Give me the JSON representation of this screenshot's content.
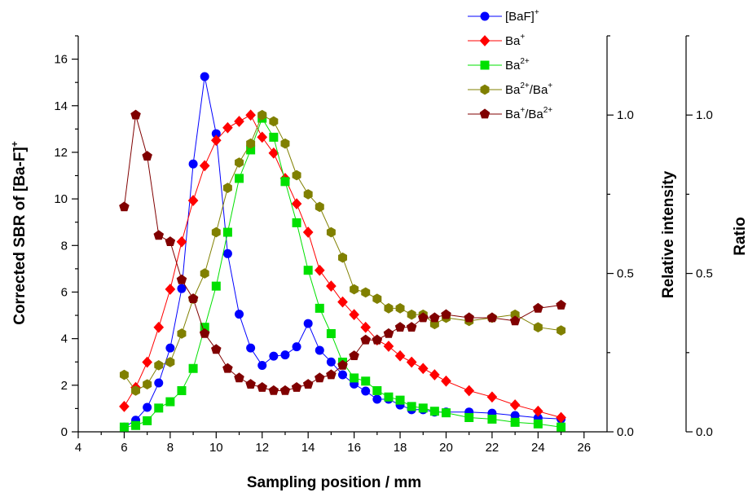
{
  "chart_data": {
    "type": "line",
    "xlabel": "Sampling position / mm",
    "ylabel": "Corrected SBR of [Ba-F]",
    "ylabel_sup": "+",
    "ylabel2": "Relative intensity",
    "ylabel3": "Ratio",
    "xlim": [
      4,
      27
    ],
    "ylim": [
      0,
      17
    ],
    "y2lim": [
      0,
      1.25
    ],
    "y3lim": [
      0,
      1.25
    ],
    "x_ticks": [
      4,
      6,
      8,
      10,
      12,
      14,
      16,
      18,
      20,
      22,
      24,
      26
    ],
    "y_ticks": [
      0,
      2,
      4,
      6,
      8,
      10,
      12,
      14,
      16
    ],
    "y2_ticks": [
      "0.0",
      "0.5",
      "1.0"
    ],
    "y3_ticks": [
      "0.0",
      "0.5",
      "1.0"
    ],
    "legend_position": "top-right",
    "series": [
      {
        "name": "[BaF]",
        "name_sup": "+",
        "axis": "left",
        "color": "#0000ff",
        "marker": "circle",
        "x": [
          6,
          6.5,
          7,
          7.5,
          8,
          8.5,
          9,
          9.5,
          10,
          10.5,
          11,
          11.5,
          12,
          12.5,
          13,
          13.5,
          14,
          14.5,
          15,
          15.5,
          16,
          16.5,
          17,
          17.5,
          18,
          18.5,
          19,
          19.5,
          20,
          21,
          22,
          23,
          24,
          25
        ],
        "y": [
          0.2,
          0.5,
          1.05,
          2.1,
          3.6,
          6.15,
          11.5,
          15.25,
          12.8,
          7.65,
          5.05,
          3.6,
          2.85,
          3.25,
          3.3,
          3.65,
          4.65,
          3.5,
          3.0,
          2.45,
          2.05,
          1.75,
          1.4,
          1.4,
          1.15,
          0.95,
          0.95,
          0.85,
          0.85,
          0.85,
          0.8,
          0.7,
          0.6,
          0.55
        ]
      },
      {
        "name": "Ba",
        "name_sup": "+",
        "axis": "right",
        "color": "#ff0000",
        "marker": "diamond",
        "x": [
          6,
          6.5,
          7,
          7.5,
          8,
          8.5,
          9,
          9.5,
          10,
          10.5,
          11,
          11.5,
          12,
          12.5,
          13,
          13.5,
          14,
          14.5,
          15,
          15.5,
          16,
          16.5,
          17,
          17.5,
          18,
          18.5,
          19,
          19.5,
          20,
          21,
          22,
          23,
          24,
          25
        ],
        "y": [
          0.08,
          0.14,
          0.22,
          0.33,
          0.45,
          0.6,
          0.73,
          0.84,
          0.92,
          0.96,
          0.98,
          1.0,
          0.93,
          0.88,
          0.8,
          0.72,
          0.63,
          0.51,
          0.46,
          0.41,
          0.37,
          0.33,
          0.29,
          0.27,
          0.24,
          0.22,
          0.2,
          0.18,
          0.16,
          0.13,
          0.11,
          0.085,
          0.065,
          0.045
        ]
      },
      {
        "name": "Ba",
        "name_sup": "2+",
        "axis": "right",
        "color": "#00e000",
        "marker": "square",
        "x": [
          6,
          6.5,
          7,
          7.5,
          8,
          8.5,
          9,
          9.5,
          10,
          10.5,
          11,
          11.5,
          12,
          12.5,
          13,
          13.5,
          14,
          14.5,
          15,
          15.5,
          16,
          16.5,
          17,
          17.5,
          18,
          18.5,
          19,
          19.5,
          20,
          21,
          22,
          23,
          24,
          25
        ],
        "y": [
          0.015,
          0.02,
          0.035,
          0.075,
          0.095,
          0.13,
          0.2,
          0.33,
          0.46,
          0.63,
          0.8,
          0.89,
          0.99,
          0.93,
          0.79,
          0.66,
          0.51,
          0.39,
          0.31,
          0.22,
          0.17,
          0.16,
          0.13,
          0.11,
          0.1,
          0.08,
          0.075,
          0.065,
          0.06,
          0.045,
          0.04,
          0.03,
          0.025,
          0.015
        ]
      },
      {
        "name": "Ba",
        "name_sup": "2+/Ba+",
        "axis": "right",
        "color": "#808000",
        "marker": "hexagon",
        "x": [
          6,
          6.5,
          7,
          7.5,
          8,
          8.5,
          9,
          9.5,
          10,
          10.5,
          11,
          11.5,
          12,
          12.5,
          13,
          13.5,
          14,
          14.5,
          15,
          15.5,
          16,
          16.5,
          17,
          17.5,
          18,
          18.5,
          19,
          19.5,
          20,
          21,
          22,
          23,
          24,
          25
        ],
        "y": [
          0.18,
          0.13,
          0.15,
          0.21,
          0.22,
          0.31,
          0.42,
          0.5,
          0.63,
          0.77,
          0.85,
          0.91,
          1.0,
          0.98,
          0.91,
          0.81,
          0.75,
          0.71,
          0.63,
          0.55,
          0.45,
          0.44,
          0.42,
          0.39,
          0.39,
          0.37,
          0.37,
          0.34,
          0.36,
          0.35,
          0.36,
          0.37,
          0.33,
          0.32
        ]
      },
      {
        "name": "Ba",
        "name_sup": "+/Ba2+",
        "axis": "right",
        "color": "#800000",
        "marker": "pentagon",
        "x": [
          6,
          6.5,
          7,
          7.5,
          8,
          8.5,
          9,
          9.5,
          10,
          10.5,
          11,
          11.5,
          12,
          12.5,
          13,
          13.5,
          14,
          14.5,
          15,
          15.5,
          16,
          16.5,
          17,
          17.5,
          18,
          18.5,
          19,
          19.5,
          20,
          21,
          22,
          23,
          24,
          25
        ],
        "y": [
          0.71,
          1.0,
          0.87,
          0.62,
          0.6,
          0.48,
          0.42,
          0.31,
          0.26,
          0.2,
          0.17,
          0.15,
          0.14,
          0.13,
          0.13,
          0.14,
          0.15,
          0.17,
          0.18,
          0.21,
          0.24,
          0.29,
          0.29,
          0.31,
          0.33,
          0.33,
          0.36,
          0.36,
          0.37,
          0.36,
          0.36,
          0.35,
          0.39,
          0.4
        ]
      }
    ]
  }
}
